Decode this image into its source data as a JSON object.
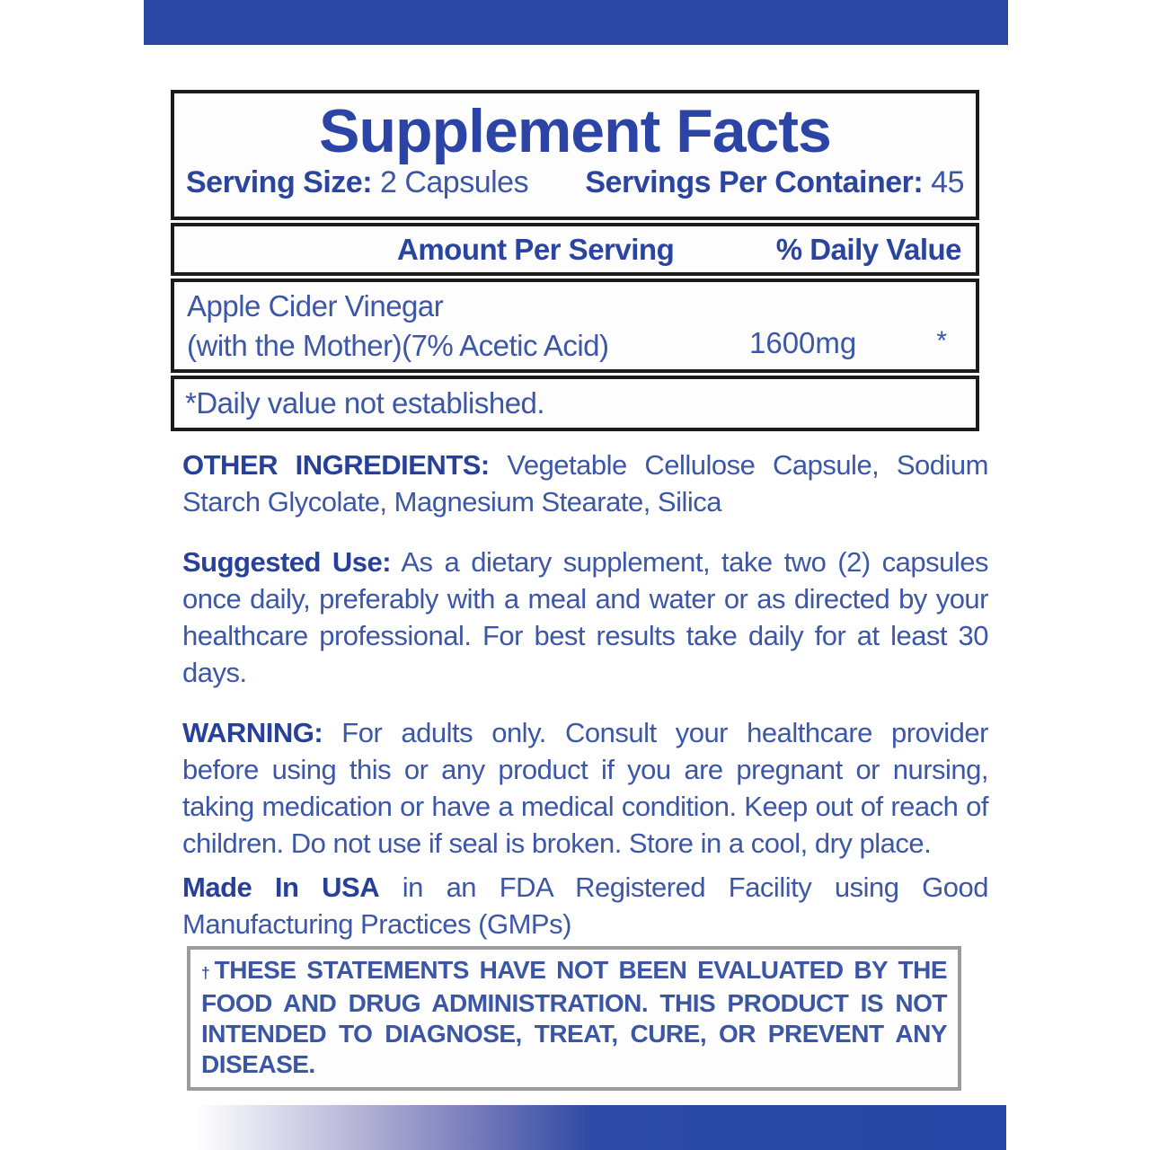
{
  "colors": {
    "accent_bar_blue": "#2A47A6",
    "title_blue": "#2B44A6",
    "body_text_blue": "#3D57A8",
    "bold_label_blue": "#27419B",
    "table_border_black": "#1B1B1B",
    "disclaimer_border_gray": "#9B9B9B"
  },
  "supplement_facts": {
    "title": "Supplement Facts",
    "serving_size_label": "Serving Size:",
    "serving_size_value": "2 Capsules",
    "servings_per_container_label": "Servings Per Container:",
    "servings_per_container_value": "45",
    "amount_per_serving_header": "Amount Per Serving",
    "daily_value_header": "% Daily Value",
    "ingredient": {
      "name_line1": "Apple Cider Vinegar",
      "name_line2": "(with the Mother)(7% Acetic Acid)",
      "amount": "1600mg",
      "daily_value": "*"
    },
    "footnote": "*Daily value not established."
  },
  "sections": {
    "other_ingredients": {
      "label": "OTHER INGREDIENTS:",
      "text": "Vegetable Cellulose Capsule, Sodium Starch Glycolate, Magnesium Stearate, Silica"
    },
    "suggested_use": {
      "label": "Suggested Use:",
      "text": "As a dietary supplement, take two (2) capsules once daily, preferably with a meal and water or as directed by your healthcare professional. For best results take daily for at least 30 days."
    },
    "warning": {
      "label": "WARNING:",
      "text": "For adults only. Consult your healthcare provider before using this or any product if you are pregnant or nursing, taking medication or have a medical condition. Keep out of reach of children. Do not use if seal is broken. Store in a cool, dry place."
    },
    "made_in_usa": {
      "label": "Made In USA",
      "text": "in an FDA Registered Facility using Good Manufacturing Practices (GMPs)"
    }
  },
  "disclaimer": {
    "dagger": "†",
    "text": "THESE STATEMENTS HAVE NOT BEEN EVALUATED BY THE FOOD AND DRUG ADMINISTRATION. THIS PRODUCT IS NOT INTENDED TO DIAGNOSE, TREAT, CURE, OR PREVENT ANY DISEASE."
  }
}
